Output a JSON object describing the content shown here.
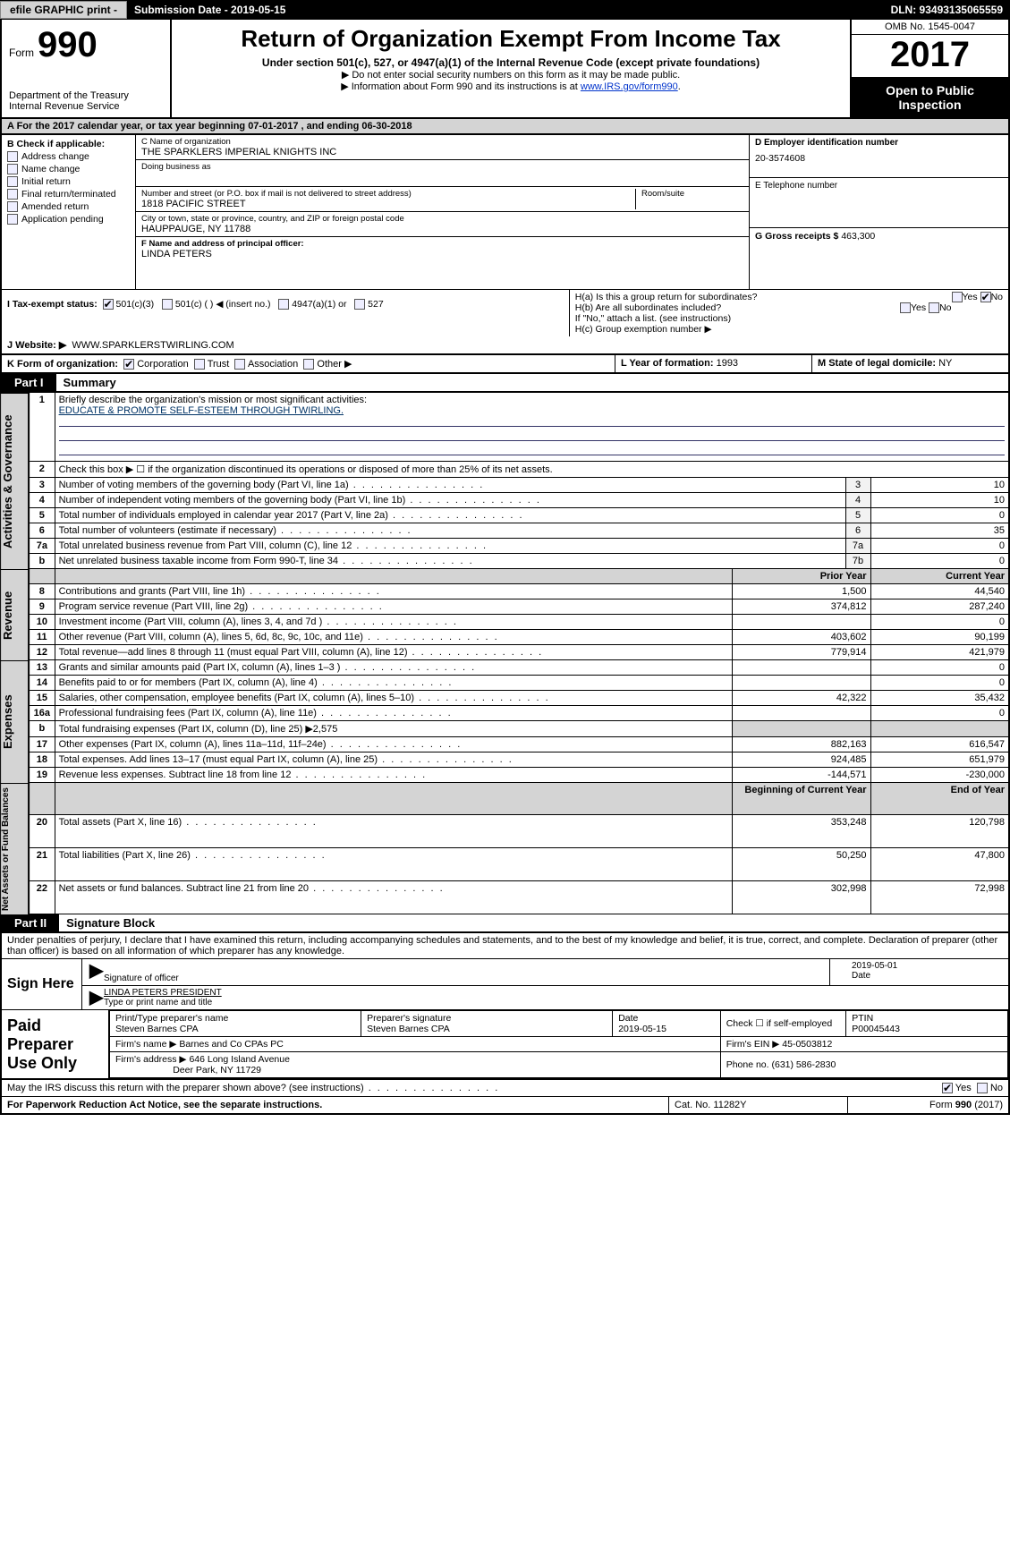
{
  "topbar": {
    "efile": "efile GRAPHIC print -",
    "submission_label": "Submission Date - 2019-05-15",
    "dln": "DLN: 93493135065559"
  },
  "header": {
    "form_small": "Form",
    "form_big": "990",
    "dept1": "Department of the Treasury",
    "dept2": "Internal Revenue Service",
    "title": "Return of Organization Exempt From Income Tax",
    "subtitle": "Under section 501(c), 527, or 4947(a)(1) of the Internal Revenue Code (except private foundations)",
    "note1": "▶ Do not enter social security numbers on this form as it may be made public.",
    "note2_pre": "▶ Information about Form 990 and its instructions is at ",
    "note2_link": "www.IRS.gov/form990",
    "note2_post": ".",
    "omb": "OMB No. 1545-0047",
    "year": "2017",
    "open": "Open to Public Inspection"
  },
  "rowA": "A  For the 2017 calendar year, or tax year beginning 07-01-2017     , and ending 06-30-2018",
  "sectionB": {
    "label": "B Check if applicable:",
    "items": [
      "Address change",
      "Name change",
      "Initial return",
      "Final return/terminated",
      "Amended return",
      "Application pending"
    ]
  },
  "sectionC": {
    "name_lbl": "C Name of organization",
    "name": "THE SPARKLERS IMPERIAL KNIGHTS INC",
    "dba_lbl": "Doing business as",
    "dba": "",
    "street_lbl": "Number and street (or P.O. box if mail is not delivered to street address)",
    "street": "1818 PACIFIC STREET",
    "room_lbl": "Room/suite",
    "room": "",
    "city_lbl": "City or town, state or province, country, and ZIP or foreign postal code",
    "city": "HAUPPAUGE, NY  11788",
    "officer_lbl": "F Name and address of principal officer:",
    "officer": "LINDA PETERS"
  },
  "sectionD": {
    "ein_lbl": "D Employer identification number",
    "ein": "20-3574608",
    "tel_lbl": "E Telephone number",
    "tel": "",
    "gross_lbl": "G Gross receipts $",
    "gross": "463,300"
  },
  "sectionH": {
    "ha": "H(a)   Is this a group return for subordinates?",
    "hb": "H(b)   Are all subordinates included?",
    "hb_note": "If \"No,\" attach a list. (see instructions)",
    "hc": "H(c)   Group exemption number ▶",
    "yes": "Yes",
    "no": "No"
  },
  "rowI": {
    "label": "I    Tax-exempt status:",
    "opts": [
      "501(c)(3)",
      "501(c) (  ) ◀ (insert no.)",
      "4947(a)(1) or",
      "527"
    ]
  },
  "rowJ": {
    "label": "J   Website: ▶",
    "value": "WWW.SPARKLERSTWIRLING.COM"
  },
  "rowK": {
    "k1": "K Form of organization:",
    "opts": [
      "Corporation",
      "Trust",
      "Association",
      "Other ▶"
    ],
    "k2_lbl": "L Year of formation:",
    "k2_val": "1993",
    "k3_lbl": "M State of legal domicile:",
    "k3_val": "NY"
  },
  "partI": {
    "tag": "Part I",
    "title": "Summary"
  },
  "summary": {
    "line1_lbl": "Briefly describe the organization's mission or most significant activities:",
    "line1_val": "EDUCATE & PROMOTE SELF-ESTEEM THROUGH TWIRLING.",
    "line2": "Check this box ▶ ☐  if the organization discontinued its operations or disposed of more than 25% of its net assets.",
    "rows_refval": [
      {
        "n": "3",
        "t": "Number of voting members of the governing body (Part VI, line 1a)",
        "ref": "3",
        "v": "10"
      },
      {
        "n": "4",
        "t": "Number of independent voting members of the governing body (Part VI, line 1b)",
        "ref": "4",
        "v": "10"
      },
      {
        "n": "5",
        "t": "Total number of individuals employed in calendar year 2017 (Part V, line 2a)",
        "ref": "5",
        "v": "0"
      },
      {
        "n": "6",
        "t": "Total number of volunteers (estimate if necessary)",
        "ref": "6",
        "v": "35"
      },
      {
        "n": "7a",
        "t": "Total unrelated business revenue from Part VIII, column (C), line 12",
        "ref": "7a",
        "v": "0"
      },
      {
        "n": "b",
        "t": "Net unrelated business taxable income from Form 990-T, line 34",
        "ref": "7b",
        "v": "0"
      }
    ],
    "col_prior": "Prior Year",
    "col_current": "Current Year",
    "revenue_rows": [
      {
        "n": "8",
        "t": "Contributions and grants (Part VIII, line 1h)",
        "p": "1,500",
        "c": "44,540"
      },
      {
        "n": "9",
        "t": "Program service revenue (Part VIII, line 2g)",
        "p": "374,812",
        "c": "287,240"
      },
      {
        "n": "10",
        "t": "Investment income (Part VIII, column (A), lines 3, 4, and 7d )",
        "p": "",
        "c": "0"
      },
      {
        "n": "11",
        "t": "Other revenue (Part VIII, column (A), lines 5, 6d, 8c, 9c, 10c, and 11e)",
        "p": "403,602",
        "c": "90,199"
      },
      {
        "n": "12",
        "t": "Total revenue—add lines 8 through 11 (must equal Part VIII, column (A), line 12)",
        "p": "779,914",
        "c": "421,979"
      }
    ],
    "expense_rows": [
      {
        "n": "13",
        "t": "Grants and similar amounts paid (Part IX, column (A), lines 1–3 )",
        "p": "",
        "c": "0"
      },
      {
        "n": "14",
        "t": "Benefits paid to or for members (Part IX, column (A), line 4)",
        "p": "",
        "c": "0"
      },
      {
        "n": "15",
        "t": "Salaries, other compensation, employee benefits (Part IX, column (A), lines 5–10)",
        "p": "42,322",
        "c": "35,432"
      },
      {
        "n": "16a",
        "t": "Professional fundraising fees (Part IX, column (A), line 11e)",
        "p": "",
        "c": "0"
      }
    ],
    "line16b": {
      "n": "b",
      "t": "Total fundraising expenses (Part IX, column (D), line 25) ▶2,575"
    },
    "expense_rows2": [
      {
        "n": "17",
        "t": "Other expenses (Part IX, column (A), lines 11a–11d, 11f–24e)",
        "p": "882,163",
        "c": "616,547"
      },
      {
        "n": "18",
        "t": "Total expenses. Add lines 13–17 (must equal Part IX, column (A), line 25)",
        "p": "924,485",
        "c": "651,979"
      },
      {
        "n": "19",
        "t": "Revenue less expenses. Subtract line 18 from line 12",
        "p": "-144,571",
        "c": "-230,000"
      }
    ],
    "col_boy": "Beginning of Current Year",
    "col_eoy": "End of Year",
    "net_rows": [
      {
        "n": "20",
        "t": "Total assets (Part X, line 16)",
        "p": "353,248",
        "c": "120,798"
      },
      {
        "n": "21",
        "t": "Total liabilities (Part X, line 26)",
        "p": "50,250",
        "c": "47,800"
      },
      {
        "n": "22",
        "t": "Net assets or fund balances. Subtract line 21 from line 20",
        "p": "302,998",
        "c": "72,998"
      }
    ],
    "side_labels": {
      "gov": "Activities & Governance",
      "rev": "Revenue",
      "exp": "Expenses",
      "net": "Net Assets or Fund Balances"
    }
  },
  "partII": {
    "tag": "Part II",
    "title": "Signature Block"
  },
  "signature": {
    "decl": "Under penalties of perjury, I declare that I have examined this return, including accompanying schedules and statements, and to the best of my knowledge and belief, it is true, correct, and complete. Declaration of preparer (other than officer) is based on all information of which preparer has any knowledge.",
    "sign_here": "Sign Here",
    "sig_officer_lbl": "Signature of officer",
    "sig_date": "2019-05-01",
    "date_lbl": "Date",
    "typed_name": "LINDA PETERS  PRESIDENT",
    "typed_lbl": "Type or print name and title"
  },
  "paid": {
    "label": "Paid Preparer Use Only",
    "r1c1_lbl": "Print/Type preparer's name",
    "r1c1": "Steven Barnes CPA",
    "r1c2_lbl": "Preparer's signature",
    "r1c2": "Steven Barnes CPA",
    "r1c3_lbl": "Date",
    "r1c3": "2019-05-15",
    "r1c4": "Check ☐  if self-employed",
    "r1c5_lbl": "PTIN",
    "r1c5": "P00045443",
    "r2_lbl": "Firm's name      ▶",
    "r2": "Barnes and Co CPAs PC",
    "r2b_lbl": "Firm's EIN ▶",
    "r2b": "45-0503812",
    "r3_lbl": "Firm's address ▶",
    "r3": "646 Long Island Avenue",
    "r3b": "Deer Park, NY  11729",
    "r3c_lbl": "Phone no.",
    "r3c": "(631) 586-2830"
  },
  "discuss": {
    "text": "May the IRS discuss this return with the preparer shown above? (see instructions)",
    "yes": "Yes",
    "no": "No"
  },
  "footer": {
    "f1": "For Paperwork Reduction Act Notice, see the separate instructions.",
    "f2": "Cat. No. 11282Y",
    "f3_a": "Form ",
    "f3_b": "990",
    "f3_c": " (2017)"
  },
  "colors": {
    "bg": "#ffffff",
    "shade": "#d4d4d4",
    "link": "#0033cc",
    "border": "#000000"
  }
}
